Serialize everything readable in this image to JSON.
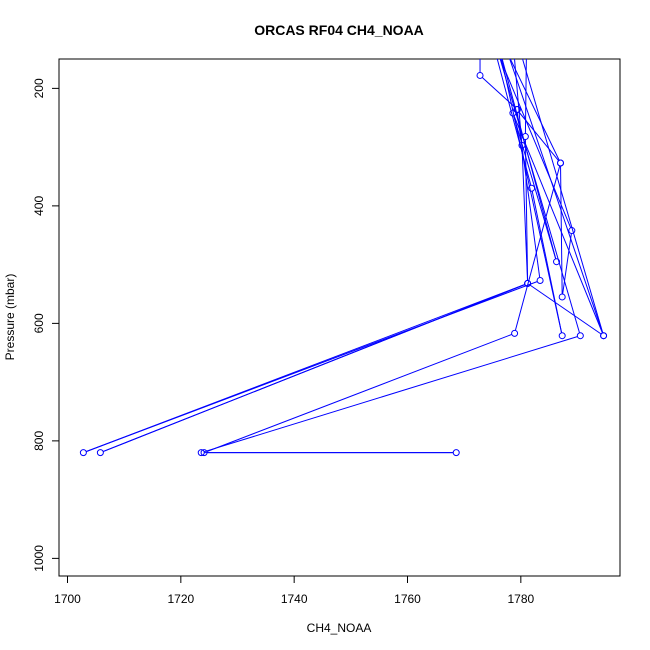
{
  "chart_data": {
    "type": "line",
    "title": "ORCAS RF04 CH4_NOAA",
    "xlabel": "CH4_NOAA",
    "ylabel": "Pressure (mbar)",
    "xlim": [
      1698.5,
      1797.5
    ],
    "ylim": [
      1030,
      150
    ],
    "y_reversed": true,
    "x_ticks": [
      1700,
      1720,
      1740,
      1760,
      1780
    ],
    "y_ticks": [
      200,
      400,
      600,
      800,
      1000
    ],
    "x_tick_labels": [
      "1700",
      "1720",
      "1740",
      "1760",
      "1780"
    ],
    "y_tick_labels": [
      "200",
      "400",
      "600",
      "800",
      "1000"
    ],
    "series_color": "#0000ff",
    "marker": "open-circle",
    "points": [
      {
        "x": 1775.4,
        "y": 134,
        "marker": false
      },
      {
        "x": 1781.9,
        "y": 370
      },
      {
        "x": 1787.3,
        "y": 621
      },
      {
        "x": 1776.1,
        "y": 128,
        "marker": false
      },
      {
        "x": 1786.3,
        "y": 495
      },
      {
        "x": 1778.6,
        "y": 242
      },
      {
        "x": 1794.6,
        "y": 621
      },
      {
        "x": 1777.8,
        "y": 143,
        "marker": false
      },
      {
        "x": 1787.0,
        "y": 327
      },
      {
        "x": 1778.9,
        "y": 617
      },
      {
        "x": 1724.1,
        "y": 820
      },
      {
        "x": 1768.6,
        "y": 820
      },
      {
        "x": 1723.6,
        "y": 820
      },
      {
        "x": 1790.5,
        "y": 621
      },
      {
        "x": 1776.3,
        "y": 148,
        "marker": false
      },
      {
        "x": 1789.0,
        "y": 442
      },
      {
        "x": 1787.3,
        "y": 555
      },
      {
        "x": 1787.0,
        "y": 327
      },
      {
        "x": 1779.3,
        "y": 236
      },
      {
        "x": 1783.4,
        "y": 527
      },
      {
        "x": 1702.8,
        "y": 820
      },
      {
        "x": 1781.2,
        "y": 532
      },
      {
        "x": 1780.2,
        "y": 297
      },
      {
        "x": 1778.6,
        "y": 118,
        "marker": false
      },
      {
        "x": 1780.0,
        "y": 140,
        "marker": false
      },
      {
        "x": 1794.6,
        "y": 621
      },
      {
        "x": 1781.2,
        "y": 532
      },
      {
        "x": 1705.8,
        "y": 820
      },
      {
        "x": 1781.2,
        "y": 532
      },
      {
        "x": 1780.8,
        "y": 282
      },
      {
        "x": 1781.0,
        "y": 130,
        "marker": false
      },
      {
        "x": 1772.8,
        "y": 132,
        "marker": false
      },
      {
        "x": 1772.8,
        "y": 178
      },
      {
        "x": 1779.4,
        "y": 236
      }
    ]
  }
}
